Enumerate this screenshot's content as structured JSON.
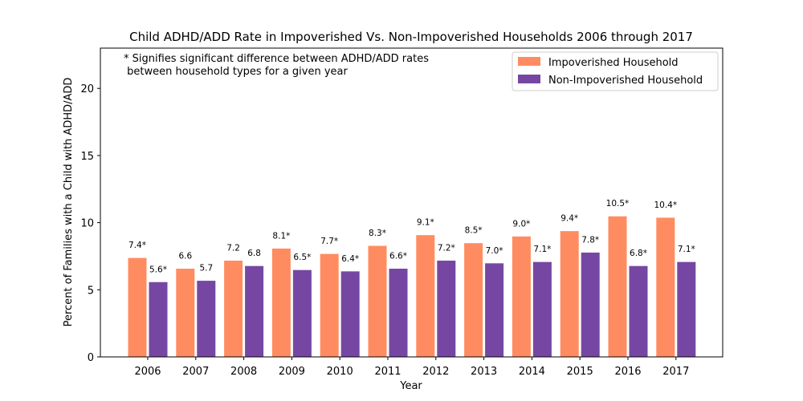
{
  "chart_data": {
    "type": "bar",
    "title": "Child ADHD/ADD Rate in Impoverished Vs. Non-Impoverished Households 2006 through 2017",
    "xlabel": "Year",
    "ylabel": "Percent of Families with a Child with ADHD/ADD",
    "ylim": [
      0,
      23
    ],
    "yticks": [
      0,
      5,
      10,
      15,
      20
    ],
    "grid": false,
    "legend_position": "top-right",
    "categories": [
      "2006",
      "2007",
      "2008",
      "2009",
      "2010",
      "2011",
      "2012",
      "2013",
      "2014",
      "2015",
      "2016",
      "2017"
    ],
    "series": [
      {
        "name": "Impoverished Household",
        "color": "#FF8C61",
        "values": [
          7.4,
          6.6,
          7.2,
          8.1,
          7.7,
          8.3,
          9.1,
          8.5,
          9.0,
          9.4,
          10.5,
          10.4
        ],
        "labels": [
          "7.4*",
          "6.6",
          "7.2",
          "8.1*",
          "7.7*",
          "8.3*",
          "9.1*",
          "8.5*",
          "9.0*",
          "9.4*",
          "10.5*",
          "10.4*"
        ]
      },
      {
        "name": "Non-Impoverished Household",
        "color": "#7647A2",
        "values": [
          5.6,
          5.7,
          6.8,
          6.5,
          6.4,
          6.6,
          7.2,
          7.0,
          7.1,
          7.8,
          6.8,
          7.1
        ],
        "labels": [
          "5.6*",
          "5.7",
          "6.8",
          "6.5*",
          "6.4*",
          "6.6*",
          "7.2*",
          "7.0*",
          "7.1*",
          "7.8*",
          "6.8*",
          "7.1*"
        ]
      }
    ],
    "annotation": [
      "* Signifies significant difference between ADHD/ADD rates",
      " between household types for a given year"
    ]
  }
}
